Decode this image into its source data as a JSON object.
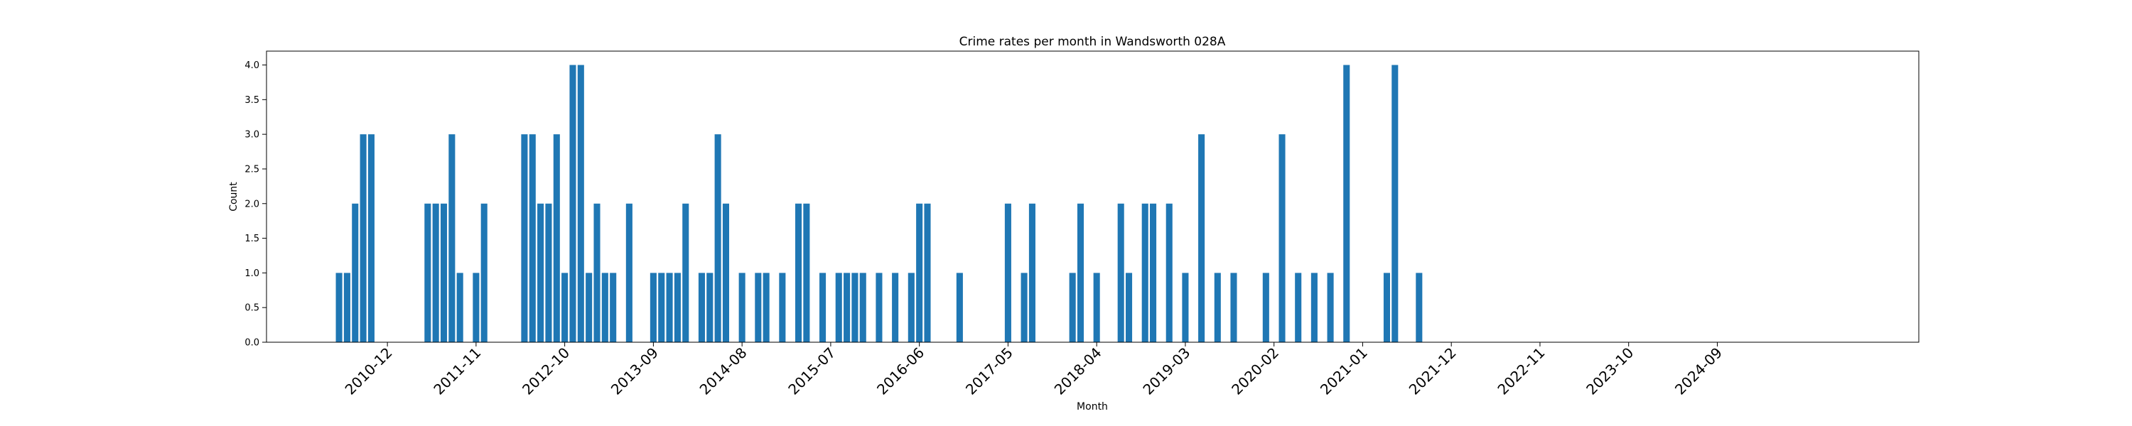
{
  "chart_data": {
    "type": "bar",
    "title": "Crime rates per month in Wandsworth 028A",
    "xlabel": "Month",
    "ylabel": "Count",
    "ylim": [
      0,
      4.2
    ],
    "xlim": [
      "2009-09",
      "2026-10"
    ],
    "grid": false,
    "legend": "none",
    "bar_color": "#1f77b4",
    "y_ticks": [
      "0.0",
      "0.5",
      "1.0",
      "1.5",
      "2.0",
      "2.5",
      "3.0",
      "3.5",
      "4.0"
    ],
    "x_ticks": [
      "2010-12",
      "2011-11",
      "2012-10",
      "2013-09",
      "2014-08",
      "2015-07",
      "2016-06",
      "2017-05",
      "2018-04",
      "2019-03",
      "2020-02",
      "2021-01",
      "2021-12",
      "2022-11",
      "2023-10",
      "2024-09"
    ],
    "x": [
      "2010-06",
      "2010-07",
      "2010-08",
      "2010-09",
      "2010-10",
      "2011-05",
      "2011-06",
      "2011-07",
      "2011-08",
      "2011-09",
      "2011-11",
      "2011-12",
      "2012-05",
      "2012-06",
      "2012-07",
      "2012-08",
      "2012-09",
      "2012-10",
      "2012-11",
      "2012-12",
      "2013-01",
      "2013-02",
      "2013-03",
      "2013-04",
      "2013-06",
      "2013-09",
      "2013-10",
      "2013-11",
      "2013-12",
      "2014-01",
      "2014-03",
      "2014-04",
      "2014-05",
      "2014-06",
      "2014-08",
      "2014-10",
      "2014-11",
      "2015-01",
      "2015-03",
      "2015-04",
      "2015-06",
      "2015-08",
      "2015-09",
      "2015-10",
      "2015-11",
      "2016-01",
      "2016-03",
      "2016-05",
      "2016-06",
      "2016-07",
      "2016-11",
      "2017-05",
      "2017-07",
      "2017-08",
      "2018-01",
      "2018-02",
      "2018-04",
      "2018-07",
      "2018-08",
      "2018-10",
      "2018-11",
      "2019-01",
      "2019-03",
      "2019-05",
      "2019-07",
      "2019-09",
      "2020-01",
      "2020-03",
      "2020-05",
      "2020-07",
      "2020-09",
      "2020-11",
      "2021-04",
      "2021-05",
      "2021-08"
    ],
    "values": [
      1,
      1,
      2,
      3,
      3,
      2,
      2,
      2,
      3,
      1,
      1,
      2,
      3,
      3,
      2,
      2,
      3,
      1,
      4,
      4,
      1,
      2,
      1,
      1,
      2,
      1,
      1,
      1,
      1,
      2,
      1,
      1,
      3,
      2,
      1,
      1,
      1,
      1,
      2,
      2,
      1,
      1,
      1,
      1,
      1,
      1,
      1,
      1,
      2,
      2,
      1,
      2,
      1,
      2,
      1,
      2,
      1,
      2,
      1,
      2,
      2,
      2,
      1,
      3,
      1,
      1,
      1,
      3,
      1,
      1,
      1,
      4,
      1,
      4,
      1
    ]
  }
}
